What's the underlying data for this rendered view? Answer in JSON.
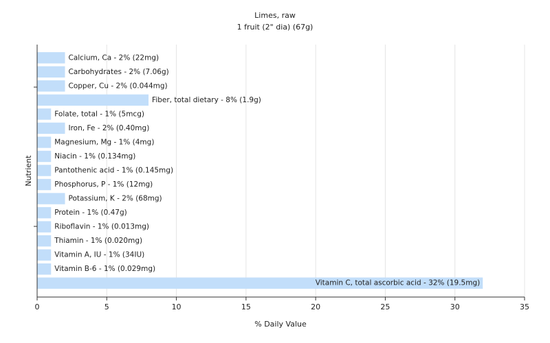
{
  "chart_data": {
    "type": "bar",
    "orientation": "horizontal",
    "title": "Limes, raw",
    "subtitle": "1 fruit (2\" dia) (67g)",
    "x_label": "% Daily Value",
    "y_label": "Nutrient",
    "values": [
      2,
      2,
      2,
      8,
      1,
      2,
      1,
      1,
      1,
      1,
      2,
      1,
      1,
      1,
      1,
      1,
      32
    ],
    "value_labels": [
      "Calcium, Ca - 2% (22mg)",
      "Carbohydrates - 2% (7.06g)",
      "Copper, Cu - 2% (0.044mg)",
      "Fiber, total dietary - 8% (1.9g)",
      "Folate, total - 1% (5mcg)",
      "Iron, Fe - 2% (0.40mg)",
      "Magnesium, Mg - 1% (4mg)",
      "Niacin - 1% (0.134mg)",
      "Pantothenic acid - 1% (0.145mg)",
      "Phosphorus, P - 1% (12mg)",
      "Potassium, K - 2% (68mg)",
      "Protein - 1% (0.47g)",
      "Riboflavin - 1% (0.013mg)",
      "Thiamin - 1% (0.020mg)",
      "Vitamin A, IU - 1% (34IU)",
      "Vitamin B-6 - 1% (0.029mg)",
      "Vitamin C, total ascorbic acid - 32% (19.5mg)"
    ],
    "color": "#c2defa",
    "xlim": [
      0,
      35
    ],
    "xticks": [
      0,
      5,
      10,
      15,
      20,
      25,
      30,
      35
    ],
    "grid": true
  }
}
